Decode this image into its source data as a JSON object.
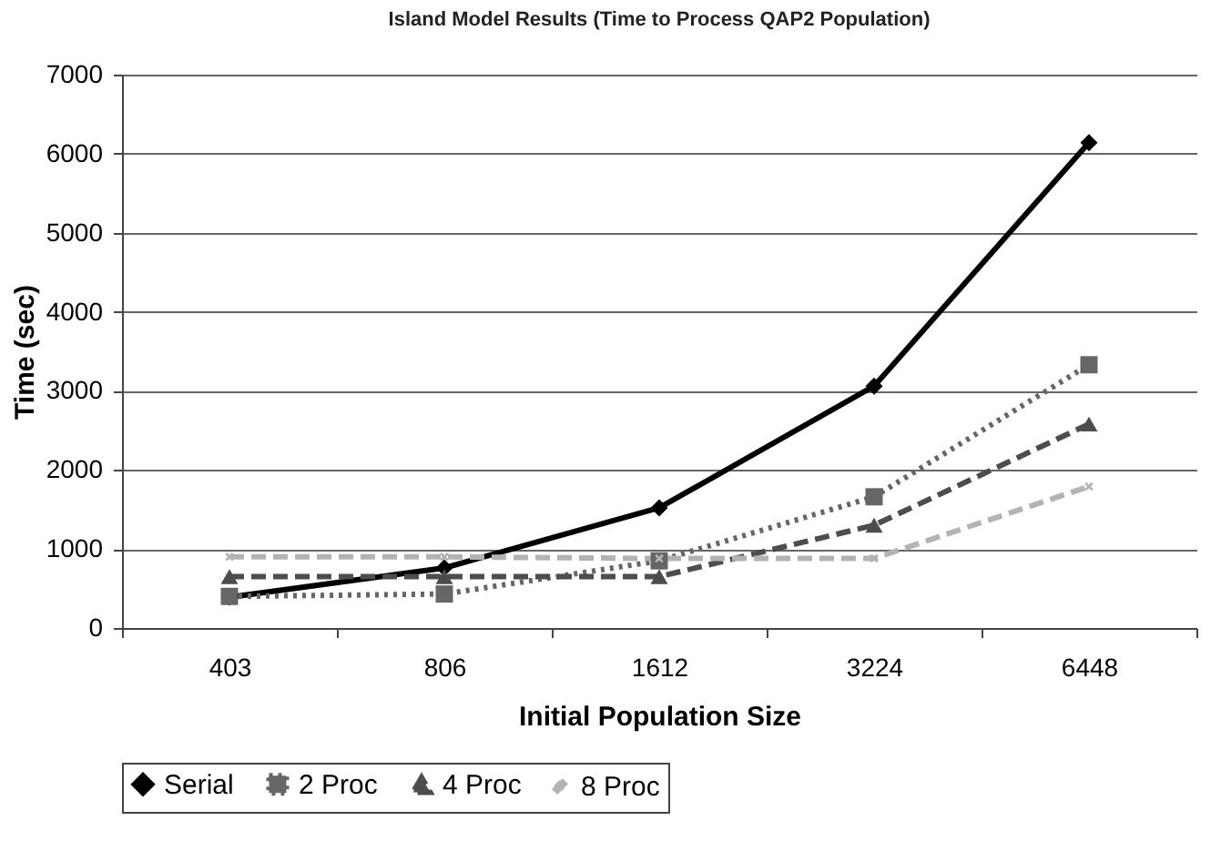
{
  "chart_data": {
    "type": "line",
    "title": "Island Model Results (Time to Process QAP2 Population)",
    "xlabel": "Initial Population Size",
    "ylabel": "Time (sec)",
    "categories": [
      "403",
      "806",
      "1612",
      "3224",
      "6448"
    ],
    "series": [
      {
        "name": "Serial",
        "color": "#000000",
        "marker": "diamond",
        "line_style": "solid",
        "values": [
          390,
          760,
          1520,
          3060,
          6140
        ]
      },
      {
        "name": "2 Proc",
        "color": "#666666",
        "marker": "square",
        "line_style": "dotted",
        "values": [
          400,
          430,
          850,
          1660,
          3330
        ]
      },
      {
        "name": "4 Proc",
        "color": "#4d4d4d",
        "marker": "triangle",
        "line_style": "dashed",
        "values": [
          650,
          650,
          650,
          1300,
          2580
        ]
      },
      {
        "name": "8 Proc",
        "color": "#b3b3b3",
        "marker": "cross",
        "line_style": "dashed",
        "values": [
          900,
          900,
          880,
          880,
          1790
        ]
      }
    ],
    "ylim": [
      0,
      7000
    ],
    "yticks": [
      0,
      1000,
      2000,
      3000,
      4000,
      5000,
      6000,
      7000
    ],
    "grid": "y",
    "legend": "bottom"
  }
}
